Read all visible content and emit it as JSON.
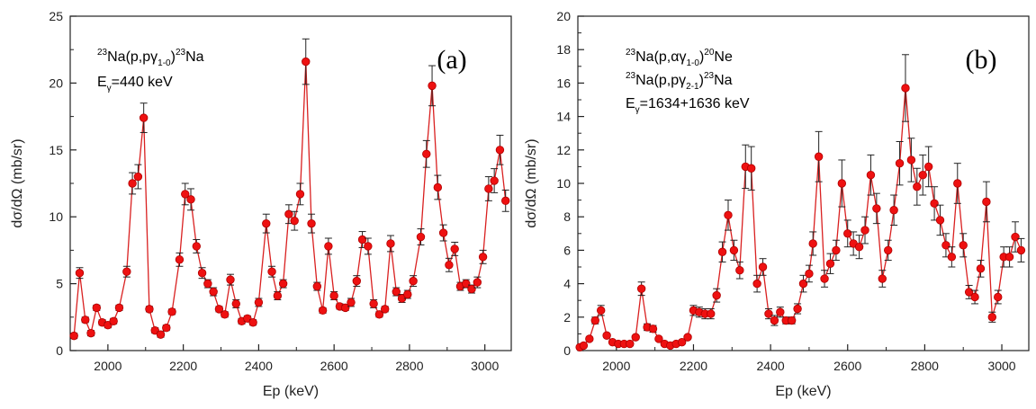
{
  "chart_data": [
    {
      "type": "line",
      "panel_label": "(a)",
      "xlabel": "Ep (keV)",
      "ylabel": "dσ/dΩ (mb/sr)",
      "xlim": [
        1900,
        3070
      ],
      "ylim": [
        0,
        25
      ],
      "xticks": [
        2000,
        2200,
        2400,
        2600,
        2800,
        3000
      ],
      "yticks": [
        0,
        5,
        10,
        15,
        20,
        25
      ],
      "annotation_lines": [
        {
          "runs": [
            {
              "t": "23",
              "s": "sup"
            },
            {
              "t": "Na(p,p"
            },
            {
              "t": "γ"
            },
            {
              "t": "1-0",
              "s": "sub"
            },
            {
              "t": ")"
            },
            {
              "t": "23",
              "s": "sup"
            },
            {
              "t": "Na"
            }
          ]
        },
        {
          "runs": [
            {
              "t": "E"
            },
            {
              "t": "γ",
              "s": "sub"
            },
            {
              "t": "=440 keV"
            }
          ]
        }
      ],
      "series": [
        {
          "color": "#ee1111",
          "points": [
            [
              1910,
              1.1,
              0.2
            ],
            [
              1925,
              5.8,
              0.4
            ],
            [
              1940,
              2.3,
              0.2
            ],
            [
              1955,
              1.3,
              0.2
            ],
            [
              1970,
              3.2,
              0.2
            ],
            [
              1985,
              2.1,
              0.2
            ],
            [
              2000,
              1.9,
              0.2
            ],
            [
              2015,
              2.2,
              0.2
            ],
            [
              2030,
              3.2,
              0.2
            ],
            [
              2050,
              5.9,
              0.4
            ],
            [
              2065,
              12.5,
              0.8
            ],
            [
              2080,
              13.0,
              0.9
            ],
            [
              2095,
              17.4,
              1.1
            ],
            [
              2110,
              3.1,
              0.2
            ],
            [
              2125,
              1.5,
              0.2
            ],
            [
              2140,
              1.2,
              0.2
            ],
            [
              2155,
              1.7,
              0.2
            ],
            [
              2170,
              2.9,
              0.2
            ],
            [
              2190,
              6.8,
              0.5
            ],
            [
              2205,
              11.7,
              0.8
            ],
            [
              2220,
              11.3,
              0.8
            ],
            [
              2235,
              7.8,
              0.5
            ],
            [
              2250,
              5.8,
              0.4
            ],
            [
              2265,
              5.0,
              0.3
            ],
            [
              2280,
              4.4,
              0.3
            ],
            [
              2295,
              3.1,
              0.2
            ],
            [
              2310,
              2.7,
              0.2
            ],
            [
              2325,
              5.3,
              0.4
            ],
            [
              2340,
              3.5,
              0.3
            ],
            [
              2355,
              2.2,
              0.2
            ],
            [
              2370,
              2.4,
              0.2
            ],
            [
              2385,
              2.1,
              0.2
            ],
            [
              2400,
              3.6,
              0.3
            ],
            [
              2420,
              9.5,
              0.7
            ],
            [
              2435,
              5.9,
              0.4
            ],
            [
              2450,
              4.1,
              0.3
            ],
            [
              2465,
              5.0,
              0.3
            ],
            [
              2480,
              10.2,
              0.7
            ],
            [
              2495,
              9.7,
              0.7
            ],
            [
              2510,
              11.7,
              0.8
            ],
            [
              2525,
              21.6,
              1.7
            ],
            [
              2540,
              9.5,
              0.7
            ],
            [
              2555,
              4.8,
              0.3
            ],
            [
              2570,
              3.0,
              0.2
            ],
            [
              2585,
              7.8,
              0.6
            ],
            [
              2600,
              4.1,
              0.3
            ],
            [
              2615,
              3.3,
              0.2
            ],
            [
              2630,
              3.2,
              0.2
            ],
            [
              2645,
              3.6,
              0.3
            ],
            [
              2660,
              5.2,
              0.4
            ],
            [
              2675,
              8.3,
              0.6
            ],
            [
              2690,
              7.8,
              0.6
            ],
            [
              2705,
              3.5,
              0.3
            ],
            [
              2720,
              2.7,
              0.2
            ],
            [
              2735,
              3.1,
              0.2
            ],
            [
              2750,
              8.0,
              0.6
            ],
            [
              2765,
              4.4,
              0.3
            ],
            [
              2780,
              3.9,
              0.3
            ],
            [
              2795,
              4.2,
              0.3
            ],
            [
              2810,
              5.2,
              0.4
            ],
            [
              2830,
              8.5,
              0.6
            ],
            [
              2845,
              14.7,
              1.0
            ],
            [
              2860,
              19.8,
              1.5
            ],
            [
              2875,
              12.2,
              0.9
            ],
            [
              2890,
              8.8,
              0.6
            ],
            [
              2905,
              6.4,
              0.5
            ],
            [
              2920,
              7.6,
              0.5
            ],
            [
              2935,
              4.8,
              0.3
            ],
            [
              2950,
              5.0,
              0.3
            ],
            [
              2965,
              4.6,
              0.3
            ],
            [
              2980,
              5.1,
              0.4
            ],
            [
              2995,
              7.0,
              0.5
            ],
            [
              3010,
              12.1,
              0.9
            ],
            [
              3025,
              12.7,
              0.9
            ],
            [
              3040,
              15.0,
              1.1
            ],
            [
              3055,
              11.2,
              0.8
            ]
          ]
        }
      ]
    },
    {
      "type": "line",
      "panel_label": "(b)",
      "xlabel": "Ep (keV)",
      "ylabel": "dσ/dΩ (mb/sr)",
      "xlim": [
        1900,
        3070
      ],
      "ylim": [
        0,
        20
      ],
      "xticks": [
        2000,
        2200,
        2400,
        2600,
        2800,
        3000
      ],
      "yticks": [
        0,
        2,
        4,
        6,
        8,
        10,
        12,
        14,
        16,
        18,
        20
      ],
      "annotation_lines": [
        {
          "runs": [
            {
              "t": "23",
              "s": "sup"
            },
            {
              "t": "Na(p,"
            },
            {
              "t": "αγ"
            },
            {
              "t": "1-0",
              "s": "sub"
            },
            {
              "t": ")"
            },
            {
              "t": "20",
              "s": "sup"
            },
            {
              "t": "Ne"
            }
          ]
        },
        {
          "runs": [
            {
              "t": "23",
              "s": "sup"
            },
            {
              "t": "Na(p,p"
            },
            {
              "t": "γ"
            },
            {
              "t": "2-1",
              "s": "sub"
            },
            {
              "t": ")"
            },
            {
              "t": "23",
              "s": "sup"
            },
            {
              "t": "Na"
            }
          ]
        },
        {
          "runs": [
            {
              "t": "E"
            },
            {
              "t": "γ",
              "s": "sub"
            },
            {
              "t": "=1634+1636 keV"
            }
          ]
        }
      ],
      "series": [
        {
          "color": "#ee1111",
          "points": [
            [
              1905,
              0.2,
              0.1
            ],
            [
              1915,
              0.3,
              0.1
            ],
            [
              1930,
              0.7,
              0.1
            ],
            [
              1945,
              1.8,
              0.2
            ],
            [
              1960,
              2.4,
              0.3
            ],
            [
              1975,
              0.9,
              0.1
            ],
            [
              1990,
              0.5,
              0.1
            ],
            [
              2005,
              0.4,
              0.1
            ],
            [
              2020,
              0.4,
              0.1
            ],
            [
              2035,
              0.4,
              0.1
            ],
            [
              2050,
              0.8,
              0.1
            ],
            [
              2065,
              3.7,
              0.4
            ],
            [
              2080,
              1.4,
              0.2
            ],
            [
              2095,
              1.3,
              0.2
            ],
            [
              2110,
              0.7,
              0.1
            ],
            [
              2125,
              0.4,
              0.1
            ],
            [
              2140,
              0.3,
              0.1
            ],
            [
              2155,
              0.4,
              0.1
            ],
            [
              2170,
              0.5,
              0.1
            ],
            [
              2185,
              0.8,
              0.1
            ],
            [
              2200,
              2.4,
              0.3
            ],
            [
              2215,
              2.3,
              0.3
            ],
            [
              2230,
              2.2,
              0.3
            ],
            [
              2245,
              2.2,
              0.3
            ],
            [
              2260,
              3.3,
              0.4
            ],
            [
              2275,
              5.9,
              0.6
            ],
            [
              2290,
              8.1,
              0.9
            ],
            [
              2305,
              6.0,
              0.6
            ],
            [
              2320,
              4.8,
              0.5
            ],
            [
              2335,
              11.0,
              1.3
            ],
            [
              2350,
              10.9,
              1.3
            ],
            [
              2365,
              4.0,
              0.5
            ],
            [
              2380,
              5.0,
              0.5
            ],
            [
              2395,
              2.2,
              0.3
            ],
            [
              2410,
              1.8,
              0.3
            ],
            [
              2425,
              2.3,
              0.3
            ],
            [
              2440,
              1.8,
              0.2
            ],
            [
              2455,
              1.8,
              0.2
            ],
            [
              2470,
              2.5,
              0.3
            ],
            [
              2485,
              4.0,
              0.5
            ],
            [
              2500,
              4.6,
              0.5
            ],
            [
              2510,
              6.4,
              0.7
            ],
            [
              2525,
              11.6,
              1.5
            ],
            [
              2540,
              4.3,
              0.5
            ],
            [
              2555,
              5.2,
              0.6
            ],
            [
              2570,
              6.0,
              0.6
            ],
            [
              2585,
              10.0,
              1.4
            ],
            [
              2600,
              7.0,
              0.8
            ],
            [
              2615,
              6.4,
              0.7
            ],
            [
              2630,
              6.2,
              0.7
            ],
            [
              2645,
              7.2,
              0.8
            ],
            [
              2660,
              10.5,
              1.2
            ],
            [
              2675,
              8.5,
              0.9
            ],
            [
              2690,
              4.3,
              0.5
            ],
            [
              2705,
              6.0,
              0.6
            ],
            [
              2720,
              8.4,
              0.9
            ],
            [
              2735,
              11.2,
              1.3
            ],
            [
              2750,
              15.7,
              2.0
            ],
            [
              2765,
              11.4,
              1.3
            ],
            [
              2780,
              9.8,
              1.1
            ],
            [
              2795,
              10.5,
              1.2
            ],
            [
              2810,
              11.0,
              1.2
            ],
            [
              2825,
              8.8,
              1.0
            ],
            [
              2840,
              7.8,
              0.9
            ],
            [
              2855,
              6.3,
              0.7
            ],
            [
              2870,
              5.6,
              0.6
            ],
            [
              2885,
              10.0,
              1.2
            ],
            [
              2900,
              6.3,
              0.7
            ],
            [
              2915,
              3.5,
              0.4
            ],
            [
              2930,
              3.2,
              0.4
            ],
            [
              2945,
              4.9,
              0.5
            ],
            [
              2960,
              8.9,
              1.2
            ],
            [
              2975,
              2.0,
              0.3
            ],
            [
              2990,
              3.2,
              0.4
            ],
            [
              3005,
              5.6,
              0.6
            ],
            [
              3020,
              5.6,
              0.6
            ],
            [
              3035,
              6.8,
              0.9
            ],
            [
              3050,
              6.0,
              0.7
            ]
          ]
        }
      ]
    }
  ]
}
